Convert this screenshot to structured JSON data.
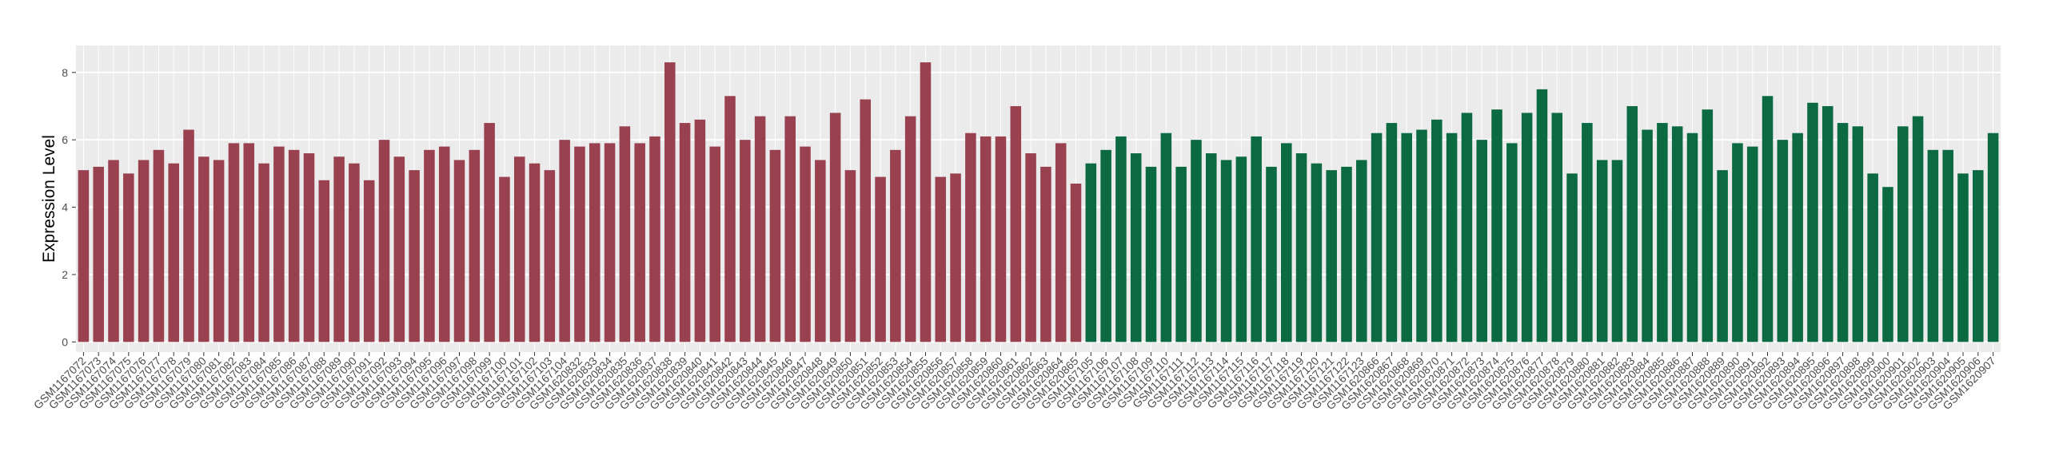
{
  "chart_data": {
    "type": "bar",
    "y_label": "Expression Level",
    "ylim": [
      -0.3,
      8.8
    ],
    "yticks": [
      0,
      2,
      4,
      6,
      8
    ],
    "grid": true,
    "series": [
      {
        "color": "#9a4150",
        "categories": [
          "GSM1167072",
          "GSM1167073",
          "GSM1167074",
          "GSM1167075",
          "GSM1167076",
          "GSM1167077",
          "GSM1167078",
          "GSM1167079",
          "GSM1167080",
          "GSM1167081",
          "GSM1167082",
          "GSM1167083",
          "GSM1167084",
          "GSM1167085",
          "GSM1167086",
          "GSM1167087",
          "GSM1167088",
          "GSM1167089",
          "GSM1167090",
          "GSM1167091",
          "GSM1167092",
          "GSM1167093",
          "GSM1167094",
          "GSM1167095",
          "GSM1167096",
          "GSM1167097",
          "GSM1167098",
          "GSM1167099",
          "GSM1167100",
          "GSM1167101",
          "GSM1167102",
          "GSM1167103",
          "GSM1167104",
          "GSM1620832",
          "GSM1620833",
          "GSM1620834",
          "GSM1620835",
          "GSM1620836",
          "GSM1620837",
          "GSM1620838",
          "GSM1620839",
          "GSM1620840",
          "GSM1620841",
          "GSM1620842",
          "GSM1620843",
          "GSM1620844",
          "GSM1620845",
          "GSM1620846",
          "GSM1620847",
          "GSM1620848",
          "GSM1620849",
          "GSM1620850",
          "GSM1620851",
          "GSM1620852",
          "GSM1620853",
          "GSM1620854",
          "GSM1620855",
          "GSM1620856",
          "GSM1620857",
          "GSM1620858",
          "GSM1620859",
          "GSM1620860",
          "GSM1620861",
          "GSM1620862",
          "GSM1620863",
          "GSM1620864",
          "GSM1620865"
        ],
        "values": [
          5.1,
          5.2,
          5.4,
          5.0,
          5.4,
          5.7,
          5.3,
          6.3,
          5.5,
          5.4,
          5.9,
          5.9,
          5.3,
          5.8,
          5.7,
          5.6,
          4.8,
          5.5,
          5.3,
          4.8,
          6.0,
          5.5,
          5.1,
          5.7,
          5.8,
          5.4,
          5.7,
          6.5,
          4.9,
          5.5,
          5.3,
          5.1,
          6.0,
          5.8,
          5.9,
          5.9,
          6.4,
          5.9,
          6.1,
          8.3,
          6.5,
          6.6,
          5.8,
          7.3,
          6.0,
          6.7,
          5.7,
          6.7,
          5.8,
          5.4,
          6.8,
          5.1,
          7.2,
          4.9,
          5.7,
          6.7,
          8.3,
          4.9,
          5.0,
          6.2,
          6.1,
          6.1,
          7.0,
          5.6,
          5.2,
          5.9,
          4.7
        ]
      },
      {
        "color": "#0b6a42",
        "categories": [
          "GSM1167105",
          "GSM1167106",
          "GSM1167107",
          "GSM1167108",
          "GSM1167109",
          "GSM1167110",
          "GSM1167111",
          "GSM1167112",
          "GSM1167113",
          "GSM1167114",
          "GSM1167115",
          "GSM1167116",
          "GSM1167117",
          "GSM1167118",
          "GSM1167119",
          "GSM1167120",
          "GSM1167121",
          "GSM1167122",
          "GSM1167123",
          "GSM1620866",
          "GSM1620867",
          "GSM1620868",
          "GSM1620869",
          "GSM1620870",
          "GSM1620871",
          "GSM1620872",
          "GSM1620873",
          "GSM1620874",
          "GSM1620875",
          "GSM1620876",
          "GSM1620877",
          "GSM1620878",
          "GSM1620879",
          "GSM1620880",
          "GSM1620881",
          "GSM1620882",
          "GSM1620883",
          "GSM1620884",
          "GSM1620885",
          "GSM1620886",
          "GSM1620887",
          "GSM1620888",
          "GSM1620889",
          "GSM1620890",
          "GSM1620891",
          "GSM1620892",
          "GSM1620893",
          "GSM1620894",
          "GSM1620895",
          "GSM1620896",
          "GSM1620897",
          "GSM1620898",
          "GSM1620899",
          "GSM1620900",
          "GSM1620901",
          "GSM1620902",
          "GSM1620903",
          "GSM1620904",
          "GSM1620905",
          "GSM1620906",
          "GSM1620907"
        ],
        "values": [
          5.3,
          5.7,
          6.1,
          5.6,
          5.2,
          6.2,
          5.2,
          6.0,
          5.6,
          5.4,
          5.5,
          6.1,
          5.2,
          5.9,
          5.6,
          5.3,
          5.1,
          5.2,
          5.4,
          6.2,
          6.5,
          6.2,
          6.3,
          6.6,
          6.2,
          6.8,
          6.0,
          6.9,
          5.9,
          6.8,
          7.5,
          6.8,
          5.0,
          6.5,
          5.4,
          5.4,
          7.0,
          6.3,
          6.5,
          6.4,
          6.2,
          6.9,
          5.1,
          5.9,
          5.8,
          7.3,
          6.0,
          6.2,
          7.1,
          7.0,
          6.5,
          6.4,
          5.0,
          4.6,
          6.4,
          6.7,
          5.7,
          5.7,
          5.0,
          5.1,
          6.2
        ]
      }
    ]
  }
}
